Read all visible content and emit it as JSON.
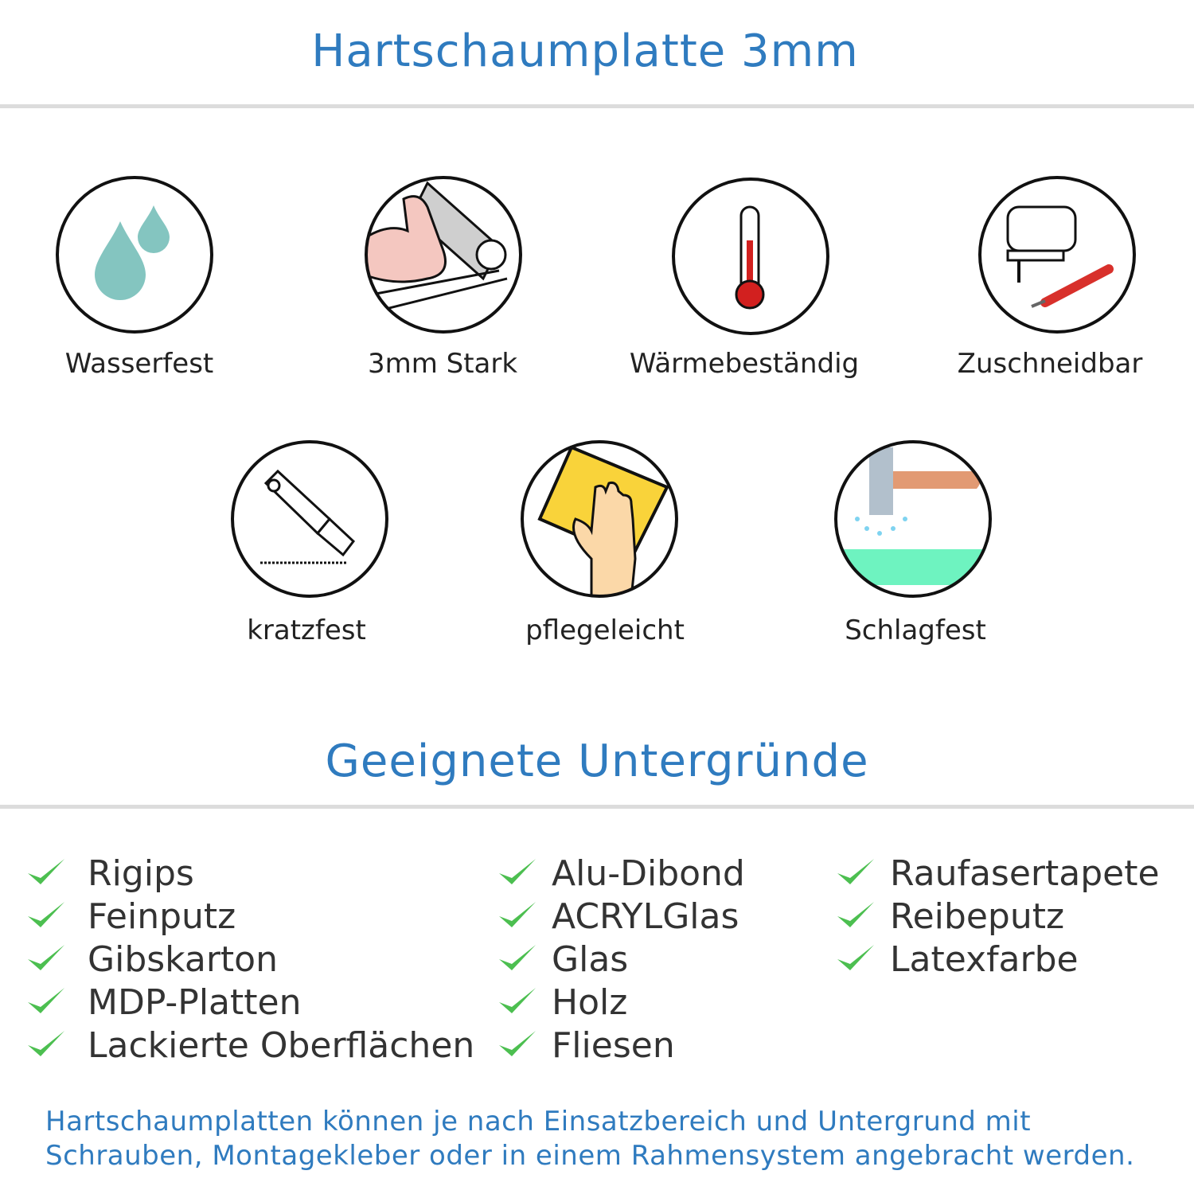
{
  "header": {
    "title": "Hartschaumplatte 3mm"
  },
  "features": [
    {
      "label": "Wasserfest",
      "icon": "water-drops-icon"
    },
    {
      "label": "3mm Stark",
      "icon": "strong-arm-icon"
    },
    {
      "label": "Wärmebeständig",
      "icon": "thermometer-icon"
    },
    {
      "label": "Zuschneidbar",
      "icon": "jigsaw-icon"
    },
    {
      "label": "kratzfest",
      "icon": "cutter-knife-icon"
    },
    {
      "label": "pflegeleicht",
      "icon": "cleaning-sponge-icon"
    },
    {
      "label": "Schlagfest",
      "icon": "hammer-icon"
    }
  ],
  "surfaces": {
    "title": "Geeignete Untergründe",
    "col1": [
      "Rigips",
      "Feinputz",
      "Gibskarton",
      "MDP-Platten",
      "Lackierte Oberflächen"
    ],
    "col2": [
      "Alu-Dibond",
      "ACRYLGlas",
      "Glas",
      "Holz",
      "Fliesen"
    ],
    "col3": [
      "Raufasertapete",
      "Reibeputz",
      "Latexfarbe"
    ]
  },
  "footer": {
    "line1": "Hartschaumplatten können je nach Einsatzbereich und Untergrund mit",
    "line2": "Schrauben, Montagekleber oder in einem Rahmensystem angebracht werden."
  },
  "colors": {
    "accent": "#2f7bbf",
    "check": "#4cbf50",
    "text": "#333333"
  }
}
